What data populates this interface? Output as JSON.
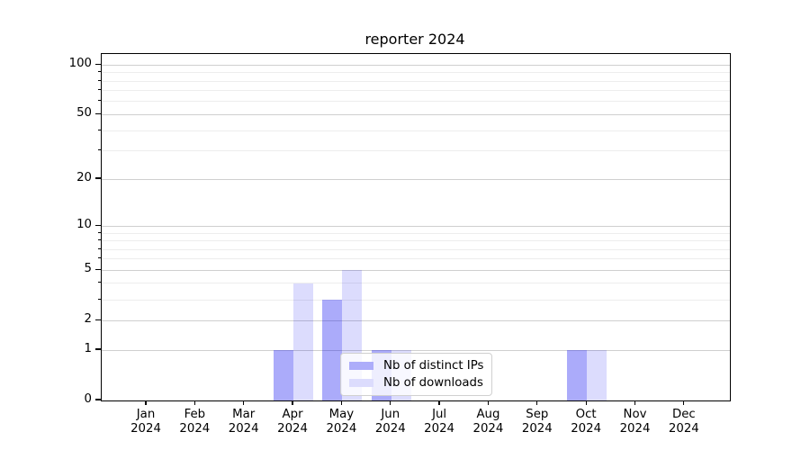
{
  "chart_data": {
    "type": "bar",
    "title": "reporter 2024",
    "categories": [
      "Jan 2024",
      "Feb 2024",
      "Mar 2024",
      "Apr 2024",
      "May 2024",
      "Jun 2024",
      "Jul 2024",
      "Aug 2024",
      "Sep 2024",
      "Oct 2024",
      "Nov 2024",
      "Dec 2024"
    ],
    "series": [
      {
        "name": "Nb of distinct IPs",
        "values": [
          0,
          0,
          0,
          1,
          3,
          1,
          0,
          0,
          0,
          1,
          0,
          0
        ],
        "fill": "rgba(10,10,240,0.34)",
        "legend_color": "#adadfa"
      },
      {
        "name": "Nb of downloads",
        "values": [
          0,
          0,
          0,
          4,
          5,
          1,
          0,
          0,
          0,
          1,
          0,
          0
        ],
        "fill": "rgba(10,10,240,0.14)",
        "legend_color": "#dcdcfd"
      }
    ],
    "xlabel": "",
    "ylabel": "",
    "yscale": "log1p",
    "ylim": [
      0,
      117
    ],
    "y_major_ticks": [
      0,
      1,
      2,
      5,
      10,
      20,
      50,
      100
    ],
    "y_minor_ticks": [
      3,
      4,
      6,
      7,
      8,
      9,
      30,
      40,
      60,
      70,
      80,
      90
    ],
    "grid": true,
    "legend_position": "inside lower center",
    "colors": {
      "bar_distinct_ips": "#adadfa",
      "bar_downloads": "#dcdcfd",
      "grid_major": "#cfcfcf",
      "grid_minor": "#ededed",
      "axis": "#000000",
      "background": "#ffffff"
    }
  }
}
